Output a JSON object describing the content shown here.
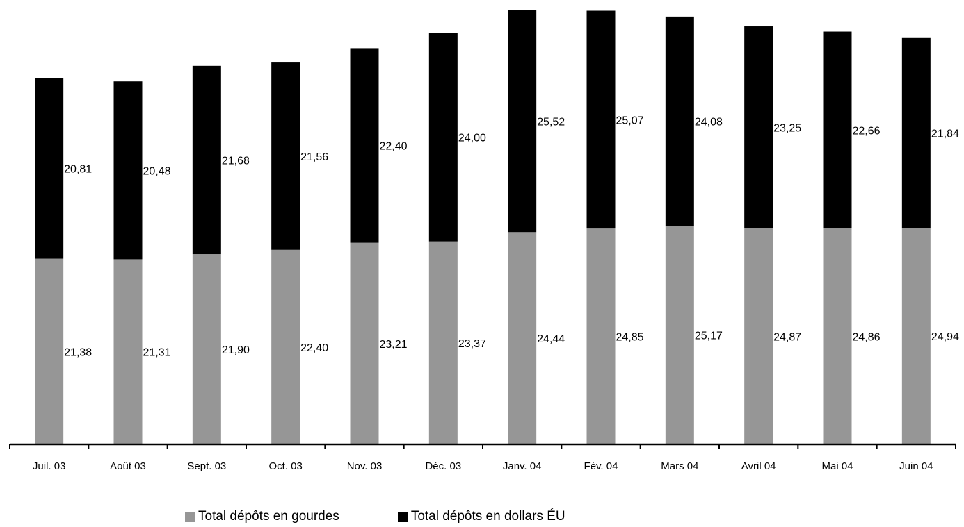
{
  "chart_data": {
    "type": "bar",
    "stacked": true,
    "categories": [
      "Juil. 03",
      "Août 03",
      "Sept. 03",
      "Oct. 03",
      "Nov. 03",
      "Déc. 03",
      "Janv. 04",
      "Fév. 04",
      "Mars 04",
      "Avril 04",
      "Mai 04",
      "Juin 04"
    ],
    "series": [
      {
        "name": "Total dépôts en gourdes",
        "color": "#969696",
        "values": [
          21.38,
          21.31,
          21.9,
          22.4,
          23.21,
          23.37,
          24.44,
          24.85,
          25.17,
          24.87,
          24.86,
          24.94
        ],
        "labels": [
          "21,38",
          "21,31",
          "21,90",
          "22,40",
          "23,21",
          "23,37",
          "24,44",
          "24,85",
          "25,17",
          "24,87",
          "24,86",
          "24,94"
        ]
      },
      {
        "name": "Total dépôts en dollars ÉU",
        "color": "#000000",
        "values": [
          20.81,
          20.48,
          21.68,
          21.56,
          22.4,
          24.0,
          25.52,
          25.07,
          24.08,
          23.25,
          22.66,
          21.84
        ],
        "labels": [
          "20,81",
          "20,48",
          "21,68",
          "21,56",
          "22,40",
          "24,00",
          "25,52",
          "25,07",
          "24,08",
          "23,25",
          "22,66",
          "21,84"
        ]
      }
    ],
    "ylim": [
      0,
      50.6
    ],
    "grid": false,
    "legend_position": "bottom"
  }
}
